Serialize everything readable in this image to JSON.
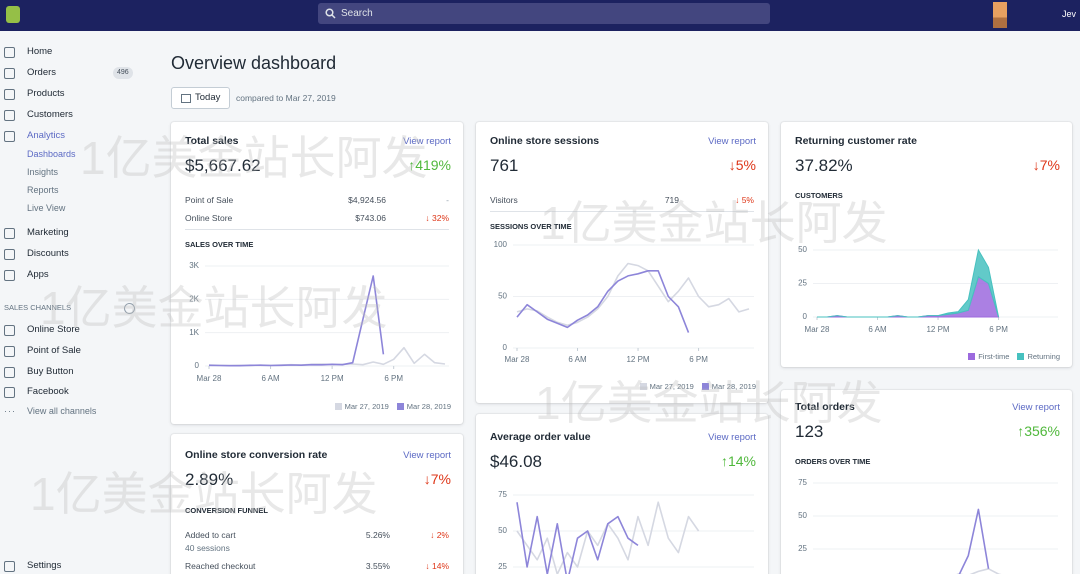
{
  "topbar": {
    "search": "Search",
    "user": "Jev"
  },
  "sidebar": {
    "main": [
      {
        "label": "Home"
      },
      {
        "label": "Orders",
        "badge": 496
      },
      {
        "label": "Products"
      },
      {
        "label": "Customers"
      },
      {
        "label": "Analytics",
        "active": true
      }
    ],
    "analytics_sub": [
      {
        "label": "Dashboards",
        "active": true
      },
      {
        "label": "Insights"
      },
      {
        "label": "Reports"
      },
      {
        "label": "Live View"
      }
    ],
    "more": [
      {
        "label": "Marketing"
      },
      {
        "label": "Discounts"
      },
      {
        "label": "Apps"
      }
    ],
    "channels_heading": "SALES CHANNELS",
    "channels": [
      {
        "label": "Online Store"
      },
      {
        "label": "Point of Sale"
      },
      {
        "label": "Buy Button"
      },
      {
        "label": "Facebook"
      }
    ],
    "view_all": "View all channels",
    "settings": "Settings"
  },
  "page": {
    "title": "Overview dashboard",
    "date_button": "Today",
    "compared": "compared to Mar 27, 2019"
  },
  "watermark": "1亿美金站长阿发",
  "cards": [
    {
      "title": "Total sales",
      "link": "View report",
      "value": "$5,667.62",
      "change": "↑419%",
      "trend": "up",
      "rows": [
        {
          "label": "Point of Sale",
          "value": "$4,924.56",
          "change": "-"
        },
        {
          "label": "Online Store",
          "value": "$743.06",
          "change": "↓ 32%",
          "trend": "down"
        }
      ],
      "chart": {
        "type": "line",
        "heading": "SALES OVER TIME",
        "grid": true,
        "ylim": [
          0,
          3000
        ],
        "yticks": [
          0,
          {
            "value": 1000,
            "label": "1K"
          },
          {
            "value": 2000,
            "label": "2K"
          },
          {
            "value": 3000,
            "label": "3K"
          }
        ],
        "xlim": [
          0,
          23
        ],
        "xticks": [
          {
            "value": 0,
            "label": "Mar 28"
          },
          {
            "value": 6,
            "label": "6 AM"
          },
          {
            "value": 12,
            "label": "12 PM"
          },
          {
            "value": 18,
            "label": "6 PM"
          }
        ],
        "series": [
          {
            "name": "Mar 27, 2019",
            "color": "#d5d8e2",
            "values": [
              30,
              20,
              15,
              20,
              10,
              25,
              20,
              30,
              40,
              30,
              50,
              60,
              40,
              50,
              60,
              40,
              120,
              50,
              200,
              550,
              80,
              350,
              100,
              60
            ]
          },
          {
            "name": "Mar 28, 2019",
            "color": "#8d85d9",
            "values": [
              20,
              15,
              10,
              10,
              20,
              25,
              15,
              20,
              30,
              25,
              40,
              35,
              50,
              40,
              100,
              1400,
              2700,
              350,
              null,
              null,
              null,
              null,
              null,
              null
            ]
          }
        ]
      }
    },
    {
      "title": "Online store sessions",
      "link": "View report",
      "value": "761",
      "change": "↓5%",
      "trend": "down",
      "rows": [
        {
          "label": "Visitors",
          "value": "719",
          "change": "↓ 5%",
          "trend": "down"
        }
      ],
      "chart": {
        "type": "line",
        "heading": "SESSIONS OVER TIME",
        "grid": true,
        "ylim": [
          0,
          100
        ],
        "yticks": [
          0,
          50,
          100
        ],
        "xlim": [
          0,
          23
        ],
        "xticks": [
          {
            "value": 0,
            "label": "Mar 28"
          },
          {
            "value": 6,
            "label": "6 AM"
          },
          {
            "value": 12,
            "label": "12 PM"
          },
          {
            "value": 18,
            "label": "6 PM"
          }
        ],
        "series": [
          {
            "name": "Mar 27, 2019",
            "color": "#d5d8e2",
            "values": [
              35,
              38,
              36,
              30,
              25,
              22,
              25,
              30,
              38,
              50,
              70,
              82,
              80,
              75,
              60,
              45,
              55,
              68,
              50,
              40,
              42,
              48,
              35,
              38
            ]
          },
          {
            "name": "Mar 28, 2019",
            "color": "#8d85d9",
            "values": [
              30,
              42,
              35,
              28,
              24,
              20,
              27,
              32,
              40,
              55,
              65,
              70,
              72,
              75,
              75,
              50,
              40,
              15,
              null,
              null,
              null,
              null,
              null,
              null
            ]
          }
        ]
      }
    },
    {
      "title": "Returning customer rate",
      "value": "37.82%",
      "change": "↓7%",
      "trend": "down",
      "rows": [],
      "chart": {
        "type": "area",
        "stacked": true,
        "heading": "CUSTOMERS",
        "grid": true,
        "ylim": [
          0,
          50
        ],
        "yticks": [
          0,
          25,
          50
        ],
        "xlim": [
          0,
          23
        ],
        "xticks": [
          {
            "value": 0,
            "label": "Mar 28"
          },
          {
            "value": 6,
            "label": "6 AM"
          },
          {
            "value": 12,
            "label": "12 PM"
          },
          {
            "value": 18,
            "label": "6 PM"
          }
        ],
        "series": [
          {
            "name": "First-time",
            "color": "#9c6ade",
            "values": [
              0,
              0,
              1,
              0,
              0,
              0,
              0,
              0,
              1,
              0,
              0,
              1,
              1,
              2,
              3,
              5,
              30,
              25,
              0,
              null,
              null,
              null,
              null,
              null
            ]
          },
          {
            "name": "Returning",
            "color": "#47c1bf",
            "values": [
              0,
              0,
              0,
              0,
              0,
              0,
              0,
              0,
              0,
              0,
              0,
              0,
              0,
              1,
              1,
              8,
              20,
              12,
              0,
              null,
              null,
              null,
              null,
              null
            ]
          }
        ]
      }
    },
    {
      "title": "Online store conversion rate",
      "link": "View report",
      "value": "2.89%",
      "change": "↓7%",
      "trend": "down",
      "heading": "CONVERSION FUNNEL",
      "funnel": [
        {
          "label": "Added to cart",
          "sub": "40 sessions",
          "value": "5.26%",
          "change": "↓ 2%",
          "trend": "down"
        },
        {
          "label": "Reached checkout",
          "value": "3.55%",
          "change": "↓ 14%",
          "trend": "down"
        }
      ]
    },
    {
      "title": "Average order value",
      "link": "View report",
      "value": "$46.08",
      "change": "↑14%",
      "trend": "up",
      "rows": [],
      "chart": {
        "type": "line",
        "grid": true,
        "ylim": [
          0,
          75
        ],
        "yticks": [
          25,
          50,
          75
        ],
        "xlim": [
          0,
          23
        ],
        "series": [
          {
            "name": "Mar 27, 2019",
            "color": "#d5d8e2",
            "values": [
              50,
              40,
              30,
              45,
              20,
              35,
              25,
              50,
              40,
              55,
              45,
              30,
              60,
              40,
              70,
              45,
              35,
              60,
              50,
              null,
              null,
              null,
              null,
              null
            ]
          },
          {
            "name": "Mar 28, 2019",
            "color": "#8d85d9",
            "values": [
              70,
              25,
              60,
              20,
              55,
              15,
              45,
              50,
              30,
              55,
              60,
              45,
              40,
              null,
              null,
              null,
              null,
              null,
              null,
              null,
              null,
              null,
              null,
              null
            ]
          }
        ]
      }
    },
    {
      "title": "Total orders",
      "link": "View report",
      "value": "123",
      "change": "↑356%",
      "trend": "up",
      "rows": [],
      "chart": {
        "type": "line",
        "heading": "ORDERS OVER TIME",
        "grid": true,
        "ylim": [
          0,
          75
        ],
        "yticks": [
          25,
          50,
          75
        ],
        "xlim": [
          0,
          23
        ],
        "series": [
          {
            "name": "Mar 27, 2019",
            "color": "#d5d8e2",
            "values": [
              2,
              1,
              1,
              2,
              1,
              1,
              2,
              3,
              2,
              4,
              3,
              5,
              4,
              3,
              6,
              5,
              8,
              10,
              6,
              4,
              3,
              2,
              2,
              1
            ]
          },
          {
            "name": "Mar 28, 2019",
            "color": "#8d85d9",
            "values": [
              1,
              1,
              0,
              1,
              0,
              1,
              1,
              2,
              1,
              2,
              3,
              2,
              3,
              2,
              4,
              20,
              55,
              10,
              null,
              null,
              null,
              null,
              null,
              null
            ]
          }
        ]
      }
    }
  ]
}
